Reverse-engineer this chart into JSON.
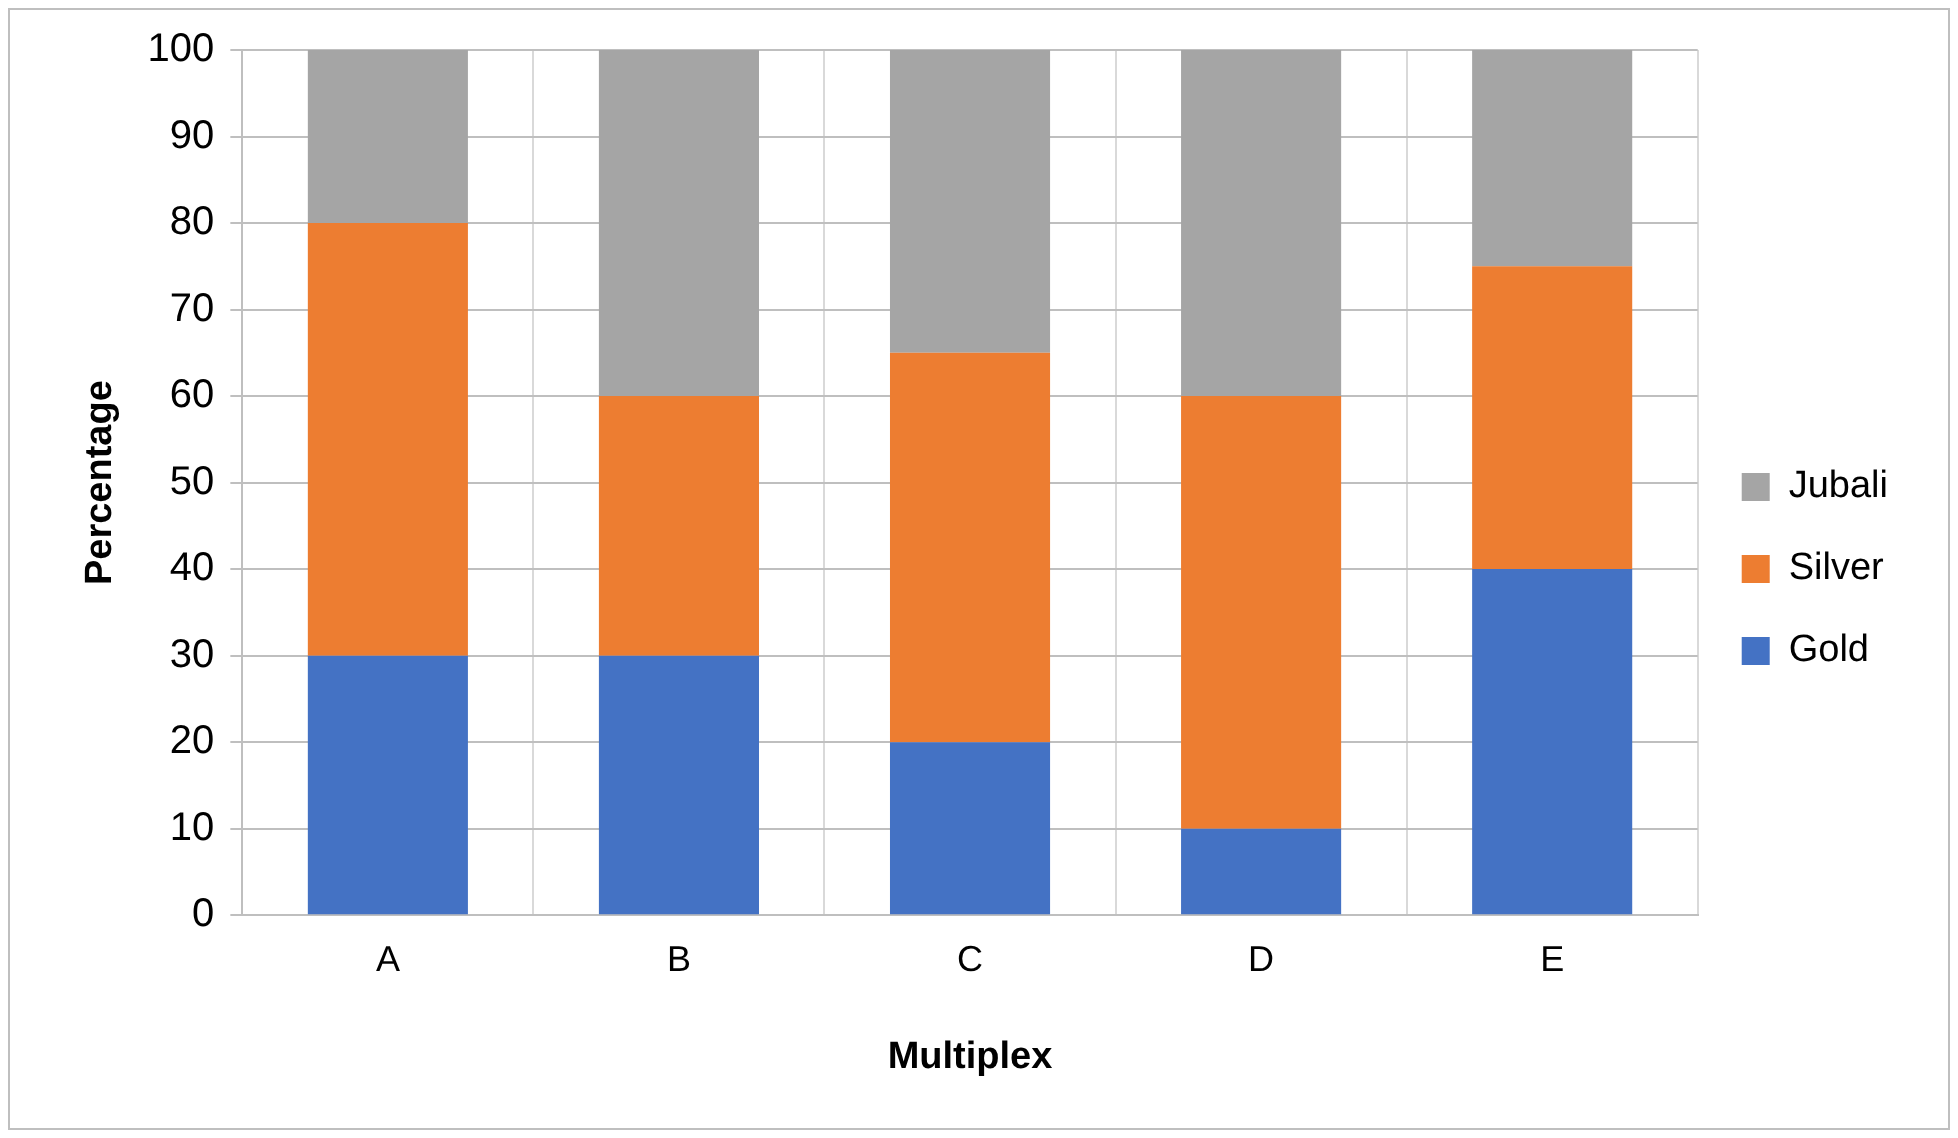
{
  "chart_data": {
    "type": "bar",
    "stacked": true,
    "xlabel": "Multiplex",
    "ylabel": "Percentage",
    "categories": [
      "A",
      "B",
      "C",
      "D",
      "E"
    ],
    "series": [
      {
        "name": "Gold",
        "color": "#4472c4",
        "values": [
          30,
          30,
          20,
          10,
          40
        ]
      },
      {
        "name": "Silver",
        "color": "#ed7d31",
        "values": [
          50,
          30,
          45,
          50,
          35
        ]
      },
      {
        "name": "Jubali",
        "color": "#a5a5a5",
        "values": [
          20,
          40,
          35,
          40,
          25
        ]
      }
    ],
    "ylim": [
      0,
      100
    ],
    "yticks": [
      0,
      10,
      20,
      30,
      40,
      50,
      60,
      70,
      80,
      90,
      100
    ],
    "grid": true,
    "legend": "right"
  }
}
